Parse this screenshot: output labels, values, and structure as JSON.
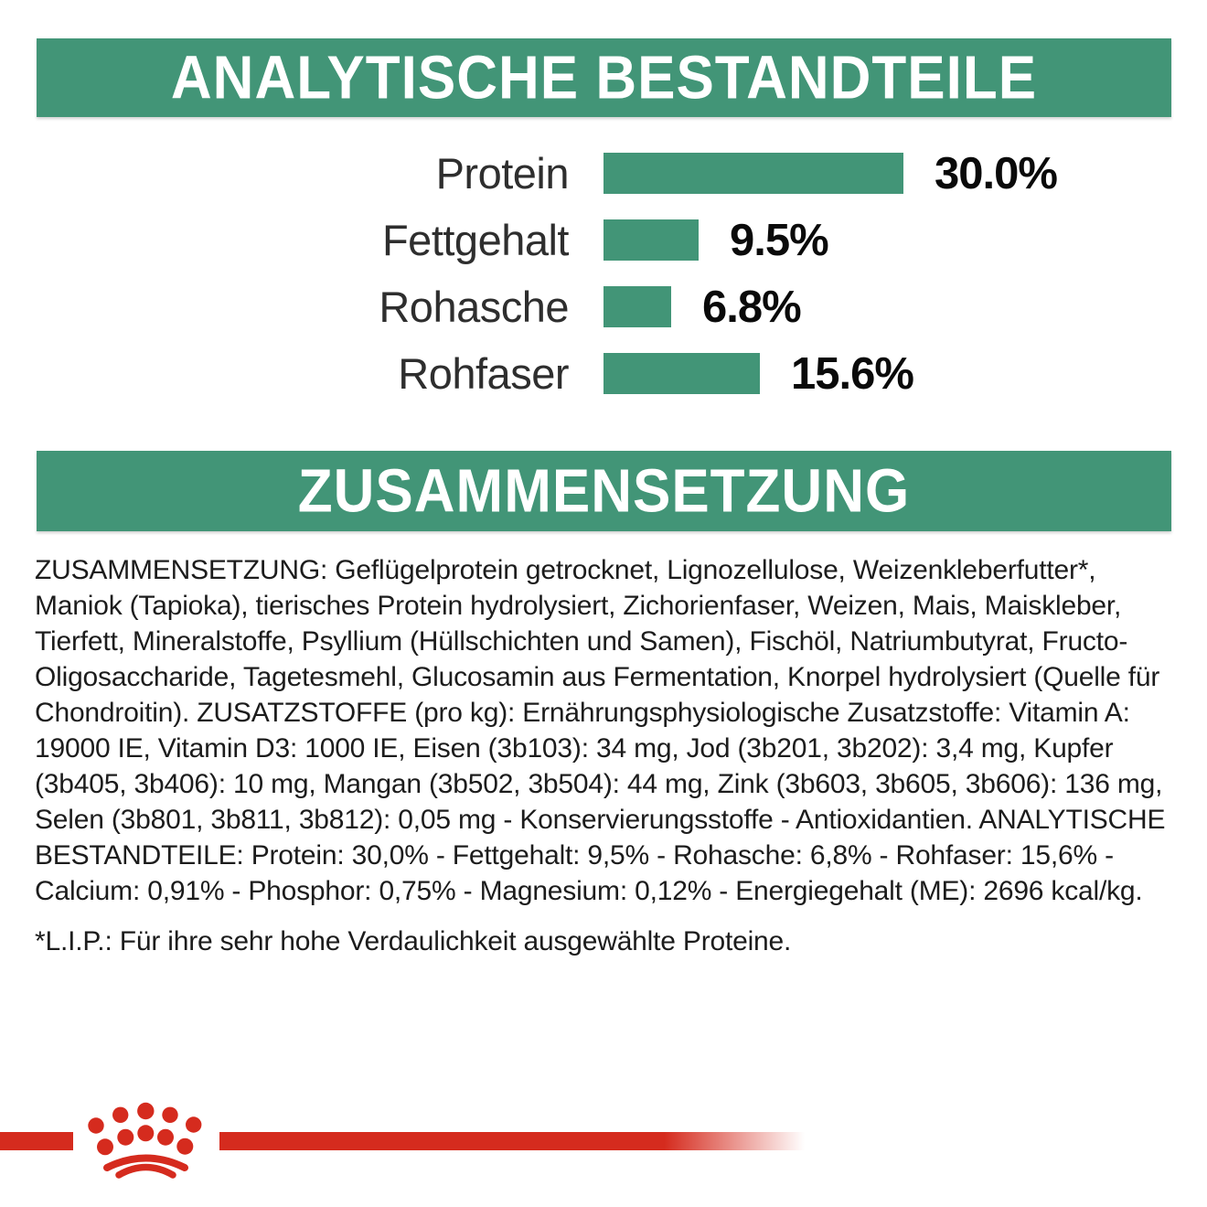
{
  "sections": {
    "analytical": {
      "title": "ANALYTISCHE BESTANDTEILE"
    },
    "composition": {
      "title": "ZUSAMMENSETZUNG",
      "text": "ZUSAMMENSETZUNG: Geflügelprotein getrocknet, Lignozellulose, Weizenkleberfutter*, Maniok (Tapioka), tierisches Protein hydrolysiert, Zichorienfaser, Weizen, Mais, Maiskleber, Tierfett, Mineralstoffe, Psyllium (Hüllschichten und Samen), Fischöl, Natriumbutyrat, Fructo-Oligosaccharide, Tagetesmehl, Glucosamin aus Fermentation, Knorpel hydrolysiert (Quelle für Chondroitin). ZUSATZSTOFFE (pro kg): Ernährungsphysiologische Zusatzstoffe: Vitamin A: 19000 IE, Vitamin D3: 1000 IE, Eisen (3b103): 34 mg, Jod (3b201, 3b202): 3,4 mg, Kupfer (3b405, 3b406): 10 mg, Mangan (3b502, 3b504): 44 mg, Zink (3b603, 3b605, 3b606): 136 mg, Selen (3b801, 3b811, 3b812): 0,05 mg - Konservierungsstoffe - Antioxidantien. ANALYTISCHE BESTANDTEILE: Protein: 30,0% - Fettgehalt: 9,5% - Rohasche: 6,8% - Rohfaser: 15,6% - Calcium: 0,91% - Phosphor: 0,75% - Magnesium: 0,12% - Energiegehalt (ME): 2696 kcal/kg.",
      "footnote": "*L.I.P.: Für ihre sehr hohe Verdaulichkeit ausgewählte Proteine."
    }
  },
  "chart_data": {
    "type": "bar",
    "orientation": "horizontal",
    "title": "ANALYTISCHE BESTANDTEILE",
    "categories": [
      "Protein",
      "Fettgehalt",
      "Rohasche",
      "Rohfaser"
    ],
    "values": [
      30.0,
      9.5,
      6.8,
      15.6
    ],
    "values_display": [
      "30.0%",
      "9.5%",
      "6.8%",
      "15.6%"
    ],
    "unit": "%",
    "xlim": [
      0,
      30
    ],
    "grid": false,
    "bar_color": "#429577",
    "value_label_position": "right-of-bar"
  },
  "logo": {
    "name": "Royal Canin crown emblem"
  },
  "colors": {
    "green": "#429577",
    "red": "#d52b1e",
    "text": "#1c1c1c"
  }
}
